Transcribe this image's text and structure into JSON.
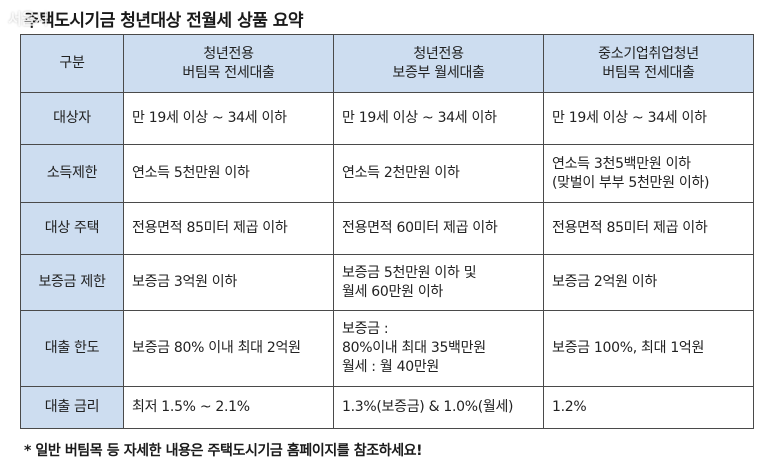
{
  "title": "주택도시기금 청년대상 전월세 상품 요약",
  "watermark": "서울시",
  "table": {
    "headers": [
      {
        "lines": [
          "구분"
        ]
      },
      {
        "lines": [
          "청년전용",
          "버팀목 전세대출"
        ]
      },
      {
        "lines": [
          "청년전용",
          "보증부 월세대출"
        ]
      },
      {
        "lines": [
          "중소기업취업청년",
          "버팀목 전세대출"
        ]
      }
    ],
    "rows": [
      {
        "label": "대상자",
        "cells": [
          [
            "만 19세 이상 ~ 34세 이하"
          ],
          [
            "만 19세 이상 ~ 34세 이하"
          ],
          [
            "만 19세 이상 ~ 34세 이하"
          ]
        ]
      },
      {
        "label": "소득제한",
        "cells": [
          [
            "연소득 5천만원 이하"
          ],
          [
            "연소득 2천만원 이하"
          ],
          [
            "연소득 3천5백만원 이하",
            "(맞벌이 부부 5천만원 이하)"
          ]
        ]
      },
      {
        "label": "대상 주택",
        "cells": [
          [
            "전용면적 85미터 제곱 이하"
          ],
          [
            "전용면적 60미터 제곱 이하"
          ],
          [
            "전용면적 85미터 제곱 이하"
          ]
        ]
      },
      {
        "label": "보증금 제한",
        "cells": [
          [
            "보증금 3억원 이하"
          ],
          [
            "보증금 5천만원 이하 및",
            "월세 60만원 이하"
          ],
          [
            "보증금 2억원 이하"
          ]
        ]
      },
      {
        "label": "대출 한도",
        "cells": [
          [
            "보증금 80% 이내 최대 2억원"
          ],
          [
            "보증금 :",
            "80%이내 최대 35백만원",
            "월세 : 월 40만원"
          ],
          [
            "보증금 100%, 최대 1억원"
          ]
        ]
      },
      {
        "label": "대출 금리",
        "cells": [
          [
            "최저 1.5% ~ 2.1%"
          ],
          [
            "1.3%(보증금) & 1.0%(월세)"
          ],
          [
            "1.2%"
          ]
        ]
      }
    ]
  },
  "footnote": "* 일반 버팀목 등 자세한 내용은 주택도시기금 홈페이지를 참조하세요!"
}
